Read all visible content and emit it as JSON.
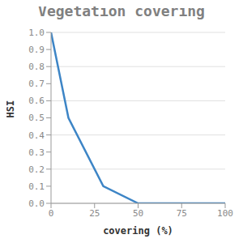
{
  "chart_data": {
    "type": "line",
    "title": "Vegetation covering",
    "x_label": "covering (%)",
    "y_label": "HSI",
    "x": [
      0,
      10,
      30,
      50,
      100
    ],
    "values": [
      1.0,
      0.5,
      0.1,
      0,
      0
    ],
    "color": "#3d85c6",
    "xlim": [
      0,
      100
    ],
    "xticks": [
      0,
      25,
      50,
      75,
      100
    ],
    "ylim": [
      0,
      1
    ],
    "yticks": [
      {
        "value": 0,
        "label": "0.0"
      },
      0.1,
      0.2,
      0.3,
      0.4,
      0.5,
      0.6,
      0.7,
      0.8,
      0.9,
      {
        "value": 1,
        "label": "1.0"
      }
    ],
    "grid": true
  }
}
